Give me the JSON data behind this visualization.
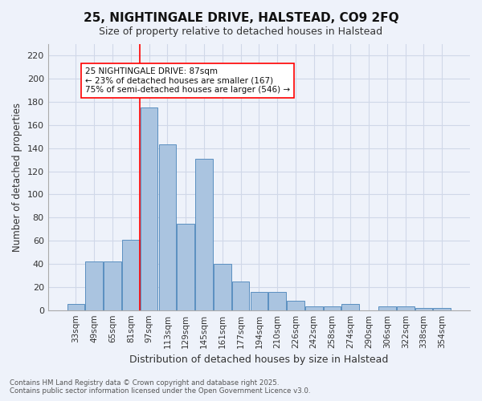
{
  "title": "25, NIGHTINGALE DRIVE, HALSTEAD, CO9 2FQ",
  "subtitle": "Size of property relative to detached houses in Halstead",
  "xlabel": "Distribution of detached houses by size in Halstead",
  "ylabel": "Number of detached properties",
  "categories": [
    "33sqm",
    "49sqm",
    "65sqm",
    "81sqm",
    "97sqm",
    "113sqm",
    "129sqm",
    "145sqm",
    "161sqm",
    "177sqm",
    "194sqm",
    "210sqm",
    "226sqm",
    "242sqm",
    "258sqm",
    "274sqm",
    "290sqm",
    "306sqm",
    "322sqm",
    "338sqm",
    "354sqm"
  ],
  "values": [
    5,
    42,
    42,
    61,
    175,
    143,
    75,
    131,
    40,
    25,
    16,
    16,
    8,
    3,
    3,
    5,
    0,
    3,
    3,
    2,
    2
  ],
  "bar_color": "#aac4e0",
  "bar_edge_color": "#5a8fc0",
  "grid_color": "#d0d8e8",
  "background_color": "#eef2fa",
  "vline_color": "red",
  "vline_pos": 3.5,
  "annotation_text": "25 NIGHTINGALE DRIVE: 87sqm\n← 23% of detached houses are smaller (167)\n75% of semi-detached houses are larger (546) →",
  "annotation_box_color": "white",
  "annotation_box_edge": "red",
  "footer": "Contains HM Land Registry data © Crown copyright and database right 2025.\nContains public sector information licensed under the Open Government Licence v3.0.",
  "ylim": [
    0,
    230
  ],
  "yticks": [
    0,
    20,
    40,
    60,
    80,
    100,
    120,
    140,
    160,
    180,
    200,
    220
  ]
}
